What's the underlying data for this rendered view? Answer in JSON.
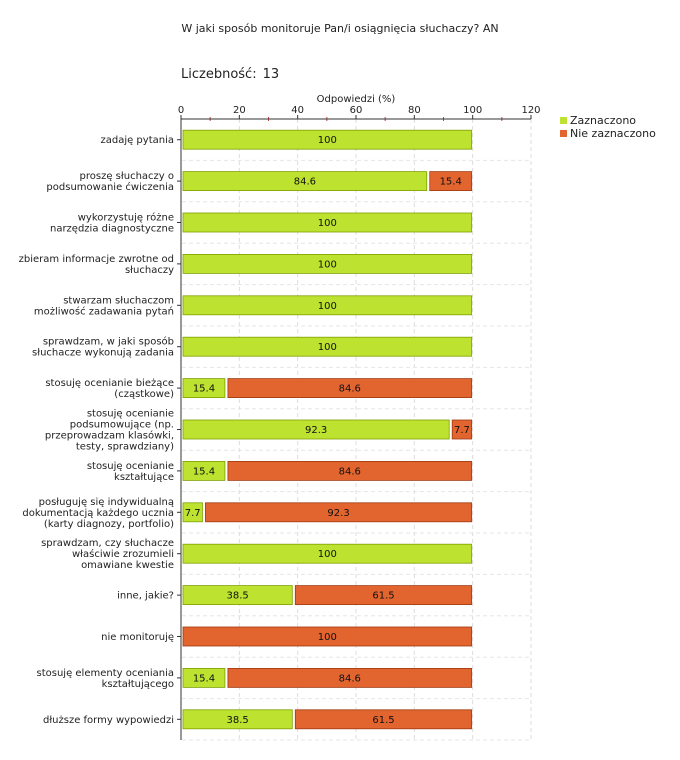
{
  "header": {
    "title": "W jaki sposób monitoruje Pan/i osiągnięcia słuchaczy?  AN",
    "count_label": "Liczebność:",
    "count_value": "13"
  },
  "colors": {
    "selected": "#bde22f",
    "not_selected": "#e2642f",
    "selected_border": "#7fa000",
    "not_selected_border": "#a03a10"
  },
  "chart_data": {
    "type": "bar",
    "orientation": "horizontal",
    "stacked": true,
    "title": "W jaki sposób monitoruje Pan/i osiągnięcia słuchaczy?  AN",
    "xlabel": "Odpowiedzi (%)",
    "ylabel": "",
    "xlim": [
      0,
      120
    ],
    "xticks": [
      0,
      20,
      40,
      60,
      80,
      100,
      120
    ],
    "legend_position": "top-right",
    "categories": [
      [
        "zadaję pytania"
      ],
      [
        "proszę słuchaczy o",
        "podsumowanie ćwiczenia"
      ],
      [
        "wykorzystuję różne",
        "narzędzia diagnostyczne"
      ],
      [
        "zbieram informacje zwrotne od",
        "słuchaczy"
      ],
      [
        "stwarzam słuchaczom",
        "możliwość zadawania pytań"
      ],
      [
        "sprawdzam, w jaki sposób",
        "słuchacze wykonują zadania"
      ],
      [
        "stosuję ocenianie bieżące",
        "(cząstkowe)"
      ],
      [
        "stosuję ocenianie",
        "podsumowujące (np.",
        "przeprowadzam klasówki,",
        "testy, sprawdziany)"
      ],
      [
        "stosuję ocenianie",
        "kształtujące"
      ],
      [
        "posługuję się indywidualną",
        "dokumentacją każdego ucznia",
        "(karty diagnozy, portfolio)"
      ],
      [
        "sprawdzam, czy słuchacze",
        "właściwie zrozumieli",
        "omawiane kwestie"
      ],
      [
        "inne, jakie?"
      ],
      [
        "nie monitoruję"
      ],
      [
        "stosuję elementy oceniania",
        "kształtującego"
      ],
      [
        "dłuższe formy wypowiedzi"
      ]
    ],
    "series": [
      {
        "name": "Zaznaczono",
        "values": [
          100,
          84.6,
          100,
          100,
          100,
          100,
          15.4,
          92.3,
          15.4,
          7.7,
          100,
          38.5,
          0,
          15.4,
          38.5
        ]
      },
      {
        "name": "Nie zaznaczono",
        "values": [
          0,
          15.4,
          0,
          0,
          0,
          0,
          84.6,
          7.7,
          84.6,
          92.3,
          0,
          61.5,
          100,
          84.6,
          61.5
        ]
      }
    ]
  }
}
